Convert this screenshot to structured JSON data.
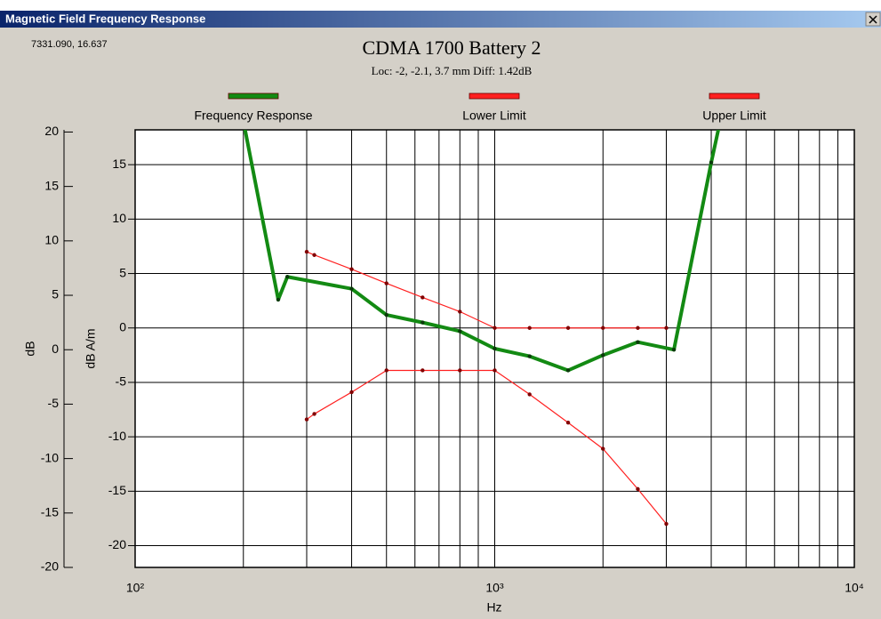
{
  "window": {
    "title": "Magnetic Field Frequency Response",
    "cursor_readout": "7331.090, 16.637"
  },
  "chart_data": {
    "type": "line",
    "title": "CDMA 1700 Battery 2",
    "subtitle": "Loc: -2, -2.1, 3.7 mm Diff: 1.42dB",
    "xlabel": "Hz",
    "ylabel": "dB A/m",
    "y2label": "dB",
    "xscale": "log",
    "xlim": [
      100,
      10000
    ],
    "xticks": [
      {
        "value": 100,
        "label": "10²"
      },
      {
        "value": 1000,
        "label": "10³"
      },
      {
        "value": 10000,
        "label": "10⁴"
      }
    ],
    "xminorticks": [
      200,
      300,
      400,
      500,
      600,
      700,
      800,
      900,
      2000,
      3000,
      4000,
      5000,
      6000,
      7000,
      8000,
      9000
    ],
    "ylim": [
      -22,
      18.2
    ],
    "yticks": [
      15,
      10,
      5,
      0,
      -5,
      -10,
      -15,
      -20
    ],
    "y2lim": [
      -20,
      20.2
    ],
    "y2ticks": [
      20,
      15,
      10,
      5,
      0,
      -5,
      -10,
      -15,
      -20
    ],
    "grid": true,
    "series": [
      {
        "name": "Frequency Response",
        "color": "#138a13",
        "x": [
          200,
          250,
          265,
          400,
          500,
          630,
          800,
          1000,
          1250,
          1600,
          2000,
          2500,
          3150,
          4000,
          5000
        ],
        "values": [
          19,
          2.6,
          4.7,
          3.6,
          1.2,
          0.5,
          -0.3,
          -1.9,
          -2.6,
          -3.9,
          -2.5,
          -1.3,
          -2.0,
          15.2,
          30
        ]
      },
      {
        "name": "Lower Limit",
        "color": "#ff2020",
        "x": [
          300,
          315,
          400,
          500,
          630,
          800,
          1000,
          1250,
          1600,
          2000,
          2500,
          3000
        ],
        "values": [
          -8.4,
          -7.9,
          -5.9,
          -3.9,
          -3.9,
          -3.9,
          -3.9,
          -6.1,
          -8.7,
          -11.1,
          -14.8,
          -18.0
        ]
      },
      {
        "name": "Upper Limit",
        "color": "#ff2020",
        "x": [
          300,
          315,
          400,
          500,
          630,
          800,
          1000,
          1250,
          1600,
          2000,
          2500,
          3000
        ],
        "values": [
          7.0,
          6.7,
          5.4,
          4.1,
          2.8,
          1.5,
          0,
          0,
          0,
          0,
          0,
          0
        ]
      }
    ]
  }
}
